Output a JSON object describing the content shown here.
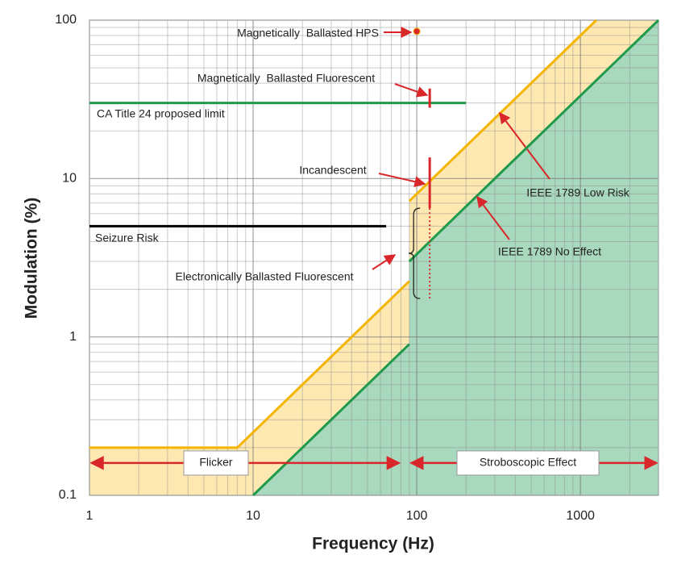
{
  "chart_data": {
    "type": "line",
    "xlabel": "Frequency (Hz)",
    "ylabel": "Modulation (%)",
    "xscale": "log",
    "yscale": "log",
    "xlim": [
      1,
      3000
    ],
    "ylim": [
      0.1,
      100
    ],
    "xticks": [
      1,
      10,
      100,
      1000
    ],
    "yticks": [
      0.1,
      1,
      10,
      100
    ],
    "xminorticks": [
      2,
      3,
      4,
      5,
      6,
      7,
      8,
      9,
      20,
      30,
      40,
      50,
      60,
      70,
      80,
      90,
      200,
      300,
      400,
      500,
      600,
      700,
      800,
      900,
      2000
    ],
    "yminorticks": [
      0.2,
      0.3,
      0.4,
      0.5,
      0.6,
      0.7,
      0.8,
      0.9,
      2,
      3,
      4,
      5,
      6,
      7,
      8,
      9,
      20,
      30,
      40,
      50,
      60,
      70,
      80,
      90
    ],
    "grid": true,
    "series": [
      {
        "name": "IEEE 1789 Low Risk",
        "color": "#f4b400",
        "fill": "#fde8b2",
        "x": [
          1,
          8,
          90,
          90,
          90,
          1250
        ],
        "values": [
          0.2,
          0.2,
          2.25,
          null,
          7.2,
          100
        ]
      },
      {
        "name": "IEEE 1789 No Effect",
        "color": "#1f9a4b",
        "fill": "#a8d8bd",
        "x": [
          10,
          90,
          90,
          90,
          3000
        ],
        "values": [
          0.1,
          0.9,
          null,
          3,
          100
        ]
      },
      {
        "name": "CA Title 24 proposed limit",
        "color": "#1f9a4b",
        "x": [
          1,
          200
        ],
        "values": [
          30,
          30
        ]
      },
      {
        "name": "Seizure Risk",
        "color": "#000000",
        "x": [
          1,
          65
        ],
        "values": [
          5,
          5
        ]
      }
    ],
    "markers": [
      {
        "label": "Magnetically  Ballasted HPS",
        "x": 100,
        "y": 85
      },
      {
        "label": "Magnetically  Ballasted Fluorescent",
        "x": 120,
        "low": 28,
        "high": 37
      },
      {
        "label": "Incandescent",
        "x": 120,
        "low": 6.5,
        "high": 13.6
      },
      {
        "label": "Electronically Ballasted Fluorescent",
        "x": 120,
        "low": 1.75,
        "high": 6.5,
        "dotted": true
      }
    ],
    "marker_color": "#d9262b",
    "spans": [
      {
        "label": "Flicker",
        "x": [
          1,
          80
        ]
      },
      {
        "label": "Stroboscopic Effect",
        "x": [
          90,
          3000
        ]
      }
    ],
    "span_y": 0.16
  }
}
